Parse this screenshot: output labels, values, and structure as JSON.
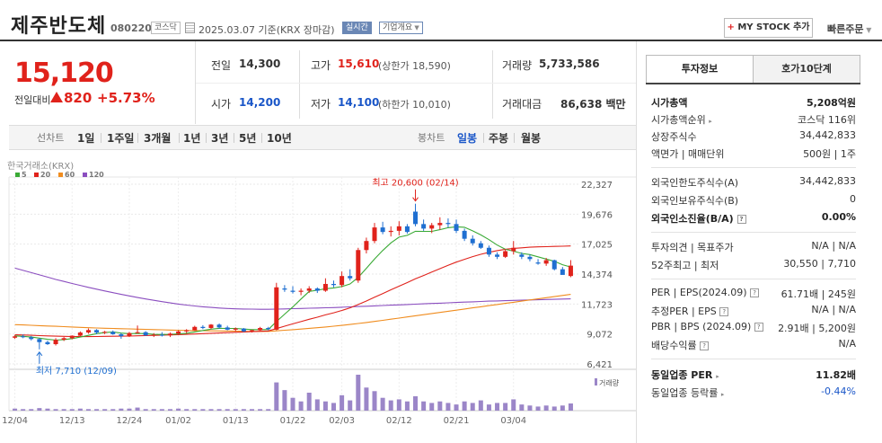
{
  "header": {
    "stock_name": "제주반도체",
    "stock_code": "080220",
    "market": "코스닥",
    "date_text": "2025.03.07 기준(KRX 장마감)",
    "realtime": "실시간",
    "company_overview": "기업개요",
    "mystock_plus": "+",
    "mystock_label": "MY STOCK 추가",
    "quick_order": "빠른주문"
  },
  "price": {
    "current": "15,120",
    "change_label": "전일대비",
    "change": "820",
    "change_pct": "+5.73%"
  },
  "quote": {
    "prev_label": "전일",
    "prev": "14,300",
    "high_label": "고가",
    "high": "15,610",
    "upper_limit": "(상한가 18,590)",
    "volume_label": "거래량",
    "volume": "5,733,586",
    "open_label": "시가",
    "open": "14,200",
    "low_label": "저가",
    "low": "14,100",
    "lower_limit": "(하한가 10,010)",
    "amount_label": "거래대금",
    "amount": "86,638",
    "amount_unit": "백만"
  },
  "period_bar": {
    "line_chart_label": "선차트",
    "periods": [
      "1일",
      "1주일",
      "3개월",
      "1년",
      "3년",
      "5년",
      "10년"
    ],
    "candle_label": "봉차트",
    "candles": [
      "일봉",
      "주봉",
      "월봉"
    ],
    "active_candle": "일봉"
  },
  "chart_data": {
    "type": "candlestick",
    "source_label": "한국거래소(KRX)",
    "legend": [
      {
        "name": "5",
        "color": "#3aaa35"
      },
      {
        "name": "20",
        "color": "#e0221b"
      },
      {
        "name": "60",
        "color": "#f08c1e"
      },
      {
        "name": "120",
        "color": "#8a4dbf"
      }
    ],
    "y_ticks": [
      "22,327",
      "19,676",
      "17,025",
      "14,374",
      "11,723",
      "9,072",
      "6,421"
    ],
    "y_tick_values": [
      22327,
      19676,
      17025,
      14374,
      11723,
      9072,
      6421
    ],
    "ylim": [
      6421,
      22327
    ],
    "x_ticks": [
      "12/04",
      "12/13",
      "12/24",
      "01/02",
      "01/13",
      "01/22",
      "02/03",
      "02/12",
      "02/21",
      "03/04"
    ],
    "x_tick_index": [
      0,
      7,
      14,
      20,
      27,
      34,
      40,
      47,
      54,
      61
    ],
    "high_annotation": "최고 20,600 (02/14)",
    "low_annotation": "최저 7,710 (12/09)",
    "high_index": 49,
    "low_index": 3,
    "volume_label": "거래량",
    "candles": [
      {
        "o": 8740,
        "h": 8980,
        "l": 8640,
        "c": 8860
      },
      {
        "o": 8860,
        "h": 9030,
        "l": 8700,
        "c": 8780
      },
      {
        "o": 8780,
        "h": 8900,
        "l": 8500,
        "c": 8620
      },
      {
        "o": 8620,
        "h": 8700,
        "l": 7710,
        "c": 8350
      },
      {
        "o": 8350,
        "h": 8480,
        "l": 8100,
        "c": 8170
      },
      {
        "o": 8170,
        "h": 8700,
        "l": 8050,
        "c": 8560
      },
      {
        "o": 8560,
        "h": 8800,
        "l": 8450,
        "c": 8700
      },
      {
        "o": 8700,
        "h": 8950,
        "l": 8600,
        "c": 8920
      },
      {
        "o": 8920,
        "h": 9300,
        "l": 8850,
        "c": 9200
      },
      {
        "o": 9200,
        "h": 9560,
        "l": 9100,
        "c": 9420
      },
      {
        "o": 9420,
        "h": 9500,
        "l": 9050,
        "c": 9200
      },
      {
        "o": 9200,
        "h": 9350,
        "l": 9050,
        "c": 9260
      },
      {
        "o": 9260,
        "h": 9380,
        "l": 9000,
        "c": 9050
      },
      {
        "o": 9050,
        "h": 9150,
        "l": 8650,
        "c": 8880
      },
      {
        "o": 8880,
        "h": 9250,
        "l": 8800,
        "c": 9150
      },
      {
        "o": 9150,
        "h": 9820,
        "l": 9100,
        "c": 9230
      },
      {
        "o": 9230,
        "h": 9320,
        "l": 8900,
        "c": 8950
      },
      {
        "o": 8950,
        "h": 9150,
        "l": 8800,
        "c": 9000
      },
      {
        "o": 9000,
        "h": 9230,
        "l": 8850,
        "c": 8950
      },
      {
        "o": 8950,
        "h": 9200,
        "l": 8800,
        "c": 9100
      },
      {
        "o": 9100,
        "h": 9400,
        "l": 9000,
        "c": 9300
      },
      {
        "o": 9300,
        "h": 9500,
        "l": 9150,
        "c": 9400
      },
      {
        "o": 9400,
        "h": 9800,
        "l": 9350,
        "c": 9700
      },
      {
        "o": 9700,
        "h": 9850,
        "l": 9500,
        "c": 9600
      },
      {
        "o": 9600,
        "h": 9950,
        "l": 9500,
        "c": 9900
      },
      {
        "o": 9900,
        "h": 10000,
        "l": 9550,
        "c": 9650
      },
      {
        "o": 9650,
        "h": 9800,
        "l": 9400,
        "c": 9450
      },
      {
        "o": 9450,
        "h": 9650,
        "l": 9300,
        "c": 9550
      },
      {
        "o": 9550,
        "h": 9600,
        "l": 9250,
        "c": 9300
      },
      {
        "o": 9300,
        "h": 9450,
        "l": 9200,
        "c": 9400
      },
      {
        "o": 9400,
        "h": 9700,
        "l": 9350,
        "c": 9600
      },
      {
        "o": 9600,
        "h": 9700,
        "l": 9400,
        "c": 9500
      },
      {
        "o": 9450,
        "h": 13600,
        "l": 9400,
        "c": 13200
      },
      {
        "o": 13100,
        "h": 13400,
        "l": 12800,
        "c": 13000
      },
      {
        "o": 12900,
        "h": 13300,
        "l": 12650,
        "c": 12800
      },
      {
        "o": 12800,
        "h": 13100,
        "l": 12500,
        "c": 12900
      },
      {
        "o": 12900,
        "h": 13300,
        "l": 12700,
        "c": 13100
      },
      {
        "o": 13100,
        "h": 13200,
        "l": 12700,
        "c": 12900
      },
      {
        "o": 12900,
        "h": 14000,
        "l": 12800,
        "c": 13500
      },
      {
        "o": 13500,
        "h": 13800,
        "l": 13200,
        "c": 13400
      },
      {
        "o": 13400,
        "h": 14600,
        "l": 13200,
        "c": 14200
      },
      {
        "o": 14200,
        "h": 14800,
        "l": 13800,
        "c": 14000
      },
      {
        "o": 13800,
        "h": 16700,
        "l": 13600,
        "c": 16500
      },
      {
        "o": 16500,
        "h": 17600,
        "l": 16200,
        "c": 17300
      },
      {
        "o": 17300,
        "h": 18900,
        "l": 17100,
        "c": 18500
      },
      {
        "o": 18500,
        "h": 19000,
        "l": 17900,
        "c": 18100
      },
      {
        "o": 18100,
        "h": 18600,
        "l": 17700,
        "c": 18200
      },
      {
        "o": 18200,
        "h": 19050,
        "l": 17800,
        "c": 18600
      },
      {
        "o": 18600,
        "h": 18800,
        "l": 17950,
        "c": 18100
      },
      {
        "o": 19900,
        "h": 20600,
        "l": 18600,
        "c": 18800
      },
      {
        "o": 18800,
        "h": 19200,
        "l": 18200,
        "c": 18400
      },
      {
        "o": 18400,
        "h": 18900,
        "l": 18000,
        "c": 18700
      },
      {
        "o": 18700,
        "h": 19400,
        "l": 18300,
        "c": 18900
      },
      {
        "o": 18900,
        "h": 19300,
        "l": 18500,
        "c": 18800
      },
      {
        "o": 18800,
        "h": 19200,
        "l": 18000,
        "c": 18200
      },
      {
        "o": 18200,
        "h": 18400,
        "l": 17300,
        "c": 17500
      },
      {
        "o": 17500,
        "h": 17800,
        "l": 16900,
        "c": 17100
      },
      {
        "o": 17100,
        "h": 17300,
        "l": 16600,
        "c": 16700
      },
      {
        "o": 16700,
        "h": 16900,
        "l": 15900,
        "c": 16100
      },
      {
        "o": 16100,
        "h": 16300,
        "l": 15700,
        "c": 15900
      },
      {
        "o": 15900,
        "h": 16600,
        "l": 15800,
        "c": 16400
      },
      {
        "o": 16400,
        "h": 17300,
        "l": 16100,
        "c": 16700
      },
      {
        "o": 16100,
        "h": 16300,
        "l": 15700,
        "c": 15900
      },
      {
        "o": 15900,
        "h": 16100,
        "l": 15500,
        "c": 15700
      },
      {
        "o": 15400,
        "h": 15700,
        "l": 15200,
        "c": 15300
      },
      {
        "o": 15300,
        "h": 15800,
        "l": 15100,
        "c": 15600
      },
      {
        "o": 15600,
        "h": 15650,
        "l": 14700,
        "c": 14800
      },
      {
        "o": 14800,
        "h": 15000,
        "l": 14400,
        "c": 14300
      },
      {
        "o": 14200,
        "h": 15610,
        "l": 14100,
        "c": 15120
      }
    ],
    "volume": [
      4,
      3,
      3,
      5,
      4,
      3,
      3,
      3,
      4,
      3,
      3,
      3,
      3,
      4,
      4,
      6,
      3,
      3,
      3,
      3,
      4,
      3,
      3,
      3,
      3,
      3,
      3,
      3,
      3,
      3,
      3,
      3,
      55,
      40,
      25,
      18,
      35,
      22,
      18,
      15,
      30,
      20,
      70,
      45,
      38,
      25,
      20,
      22,
      18,
      28,
      18,
      15,
      18,
      15,
      12,
      18,
      15,
      20,
      12,
      15,
      15,
      22,
      12,
      10,
      8,
      10,
      8,
      10,
      14
    ],
    "ma5": [
      8900,
      8860,
      8800,
      8700,
      8600,
      8530,
      8580,
      8660,
      8800,
      8950,
      9100,
      9200,
      9250,
      9150,
      9100,
      9120,
      9100,
      9040,
      9030,
      9040,
      9080,
      9130,
      9250,
      9380,
      9500,
      9570,
      9560,
      9560,
      9510,
      9460,
      9460,
      9470,
      10170,
      10830,
      11460,
      12160,
      12840,
      12940,
      13080,
      13150,
      13270,
      13500,
      14080,
      14880,
      15700,
      16460,
      17130,
      17640,
      17800,
      18160,
      18150,
      18150,
      18300,
      18480,
      18560,
      18520,
      18200,
      17840,
      17420,
      16940,
      16570,
      16400,
      16200,
      16100,
      15900,
      15700,
      15500,
      15200,
      15000
    ],
    "ma20": [
      9000,
      8980,
      8960,
      8930,
      8900,
      8880,
      8860,
      8850,
      8840,
      8840,
      8850,
      8860,
      8870,
      8880,
      8890,
      8910,
      8930,
      8950,
      8970,
      8990,
      9010,
      9040,
      9070,
      9100,
      9130,
      9160,
      9190,
      9220,
      9250,
      9280,
      9310,
      9340,
      9550,
      9760,
      9970,
      10170,
      10370,
      10560,
      10760,
      10950,
      11150,
      11380,
      11680,
      11990,
      12320,
      12650,
      12980,
      13300,
      13620,
      13950,
      14250,
      14550,
      14850,
      15150,
      15430,
      15680,
      15920,
      16120,
      16300,
      16450,
      16570,
      16650,
      16700,
      16750,
      16780,
      16800,
      16820,
      16840,
      16860
    ],
    "ma60": [
      9900,
      9870,
      9840,
      9810,
      9780,
      9750,
      9720,
      9690,
      9660,
      9630,
      9600,
      9580,
      9560,
      9540,
      9520,
      9500,
      9480,
      9460,
      9440,
      9420,
      9400,
      9380,
      9370,
      9360,
      9350,
      9340,
      9330,
      9320,
      9310,
      9300,
      9300,
      9300,
      9350,
      9400,
      9450,
      9510,
      9570,
      9630,
      9690,
      9760,
      9830,
      9910,
      10000,
      10090,
      10180,
      10280,
      10380,
      10480,
      10580,
      10680,
      10780,
      10880,
      10980,
      11080,
      11180,
      11280,
      11380,
      11480,
      11580,
      11680,
      11780,
      11880,
      11980,
      12080,
      12180,
      12280,
      12380,
      12480,
      12580
    ],
    "ma120": [
      14900,
      14700,
      14500,
      14300,
      14100,
      13900,
      13720,
      13540,
      13370,
      13200,
      13040,
      12880,
      12730,
      12580,
      12440,
      12300,
      12170,
      12050,
      11930,
      11820,
      11720,
      11630,
      11550,
      11480,
      11420,
      11370,
      11330,
      11300,
      11280,
      11270,
      11260,
      11260,
      11270,
      11290,
      11310,
      11330,
      11350,
      11370,
      11390,
      11410,
      11440,
      11470,
      11500,
      11530,
      11560,
      11590,
      11620,
      11650,
      11680,
      11710,
      11740,
      11770,
      11800,
      11830,
      11860,
      11890,
      11920,
      11950,
      11980,
      12000,
      12020,
      12040,
      12060,
      12080,
      12100,
      12120,
      12140,
      12160,
      12180
    ]
  },
  "right_panel": {
    "tab_invest": "투자정보",
    "tab_orderbook": "호가10단계",
    "rows": {
      "market_cap": {
        "label": "시가총액",
        "value": "5,208억원"
      },
      "market_cap_rank": {
        "label": "시가총액순위",
        "value": "코스닥 116위"
      },
      "shares": {
        "label": "상장주식수",
        "value": "34,442,833"
      },
      "par_unit": {
        "label": "액면가 | 매매단위",
        "value": "500원  |  1주"
      },
      "foreign_limit": {
        "label": "외국인한도주식수(A)",
        "value": "34,442,833"
      },
      "foreign_hold": {
        "label": "외국인보유주식수(B)",
        "value": "0"
      },
      "foreign_rate": {
        "label": "외국인소진율(B/A)",
        "value": "0.00%"
      },
      "opinion": {
        "label": "투자의견  |  목표주가",
        "value": "N/A  |  N/A"
      },
      "w52": {
        "label": "52주최고  |  최저",
        "value": "30,550  |  7,710"
      },
      "per_eps": {
        "label": "PER  |  EPS(2024.09)",
        "value": "61.71배  |  245원"
      },
      "est_per_eps": {
        "label": "추정PER  |  EPS",
        "value": "N/A  |  N/A"
      },
      "pbr_bps": {
        "label": "PBR  |  BPS (2024.09)",
        "value": "2.91배  |  5,200원"
      },
      "dividend": {
        "label": "배당수익률",
        "value": "N/A"
      },
      "industry_per": {
        "label": "동일업종 PER",
        "value": "11.82배"
      },
      "industry_rate": {
        "label": "동일업종 등락률",
        "value": "-0.44%"
      }
    }
  }
}
